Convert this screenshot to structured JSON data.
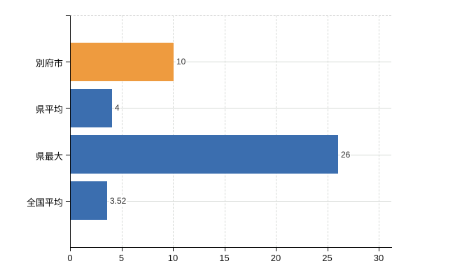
{
  "chart_data": {
    "type": "bar",
    "orientation": "horizontal",
    "title": "",
    "xlabel": "",
    "ylabel": "",
    "categories": [
      "別府市",
      "県平均",
      "県最大",
      "全国平均"
    ],
    "values": [
      10,
      4,
      26,
      3.52
    ],
    "value_labels": [
      "10",
      "4",
      "26",
      "3.52"
    ],
    "bar_colors": [
      "#ee9b3f",
      "#3b6eaf",
      "#3b6eaf",
      "#3b6eaf"
    ],
    "x_ticks": [
      0,
      5,
      10,
      15,
      20,
      25,
      30
    ],
    "x_tick_labels": [
      "0",
      "5",
      "10",
      "15",
      "20",
      "25",
      "30"
    ],
    "xlim": [
      0,
      31.2
    ],
    "grid": "both",
    "legend": false,
    "colors": {
      "axis": "#000000",
      "gridline": "#d6d9d6",
      "plot_border_top": "#cccccc",
      "background": "#ffffff",
      "bar_label_text": "#303030",
      "category_text": "#000000",
      "tick_text": "#111111"
    }
  }
}
